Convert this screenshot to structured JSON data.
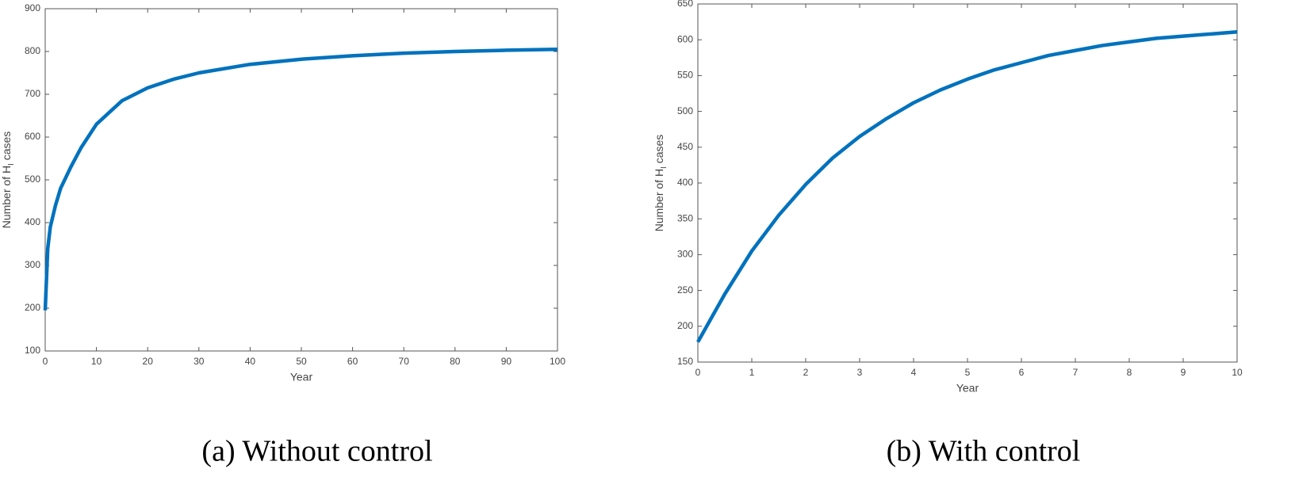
{
  "chart_data": [
    {
      "type": "line",
      "xlabel": "Year",
      "ylabel": [
        "Number of H",
        "I",
        " cases"
      ],
      "caption": "(a)  Without control",
      "x": [
        0,
        0.5,
        1,
        2,
        3,
        5,
        7,
        10,
        15,
        20,
        25,
        30,
        40,
        50,
        60,
        70,
        80,
        90,
        100
      ],
      "series": [
        {
          "color": "#0072bd",
          "values": [
            195,
            340,
            390,
            440,
            480,
            530,
            575,
            630,
            685,
            715,
            735,
            750,
            770,
            782,
            790,
            796,
            800,
            803,
            805
          ]
        }
      ],
      "xlim": [
        0,
        100
      ],
      "xticks": [
        0,
        10,
        20,
        30,
        40,
        50,
        60,
        70,
        80,
        90,
        100
      ],
      "ylim": [
        100,
        900
      ],
      "yticks": [
        100,
        200,
        300,
        400,
        500,
        600,
        700,
        800,
        900
      ]
    },
    {
      "type": "line",
      "xlabel": "Year",
      "ylabel": [
        "Number of H",
        "I",
        " cases"
      ],
      "caption": "(b) With control",
      "x": [
        0,
        0.5,
        1,
        1.5,
        2,
        2.5,
        3,
        3.5,
        4,
        4.5,
        5,
        5.5,
        6,
        6.5,
        7,
        7.5,
        8,
        8.5,
        9,
        9.5,
        10
      ],
      "series": [
        {
          "color": "#0072bd",
          "values": [
            178,
            245,
            305,
            355,
            398,
            435,
            465,
            490,
            512,
            530,
            545,
            558,
            568,
            578,
            585,
            592,
            597,
            602,
            605,
            608,
            611
          ]
        }
      ],
      "xlim": [
        0,
        10
      ],
      "xticks": [
        0,
        1,
        2,
        3,
        4,
        5,
        6,
        7,
        8,
        9,
        10
      ],
      "ylim": [
        150,
        650
      ],
      "yticks": [
        150,
        200,
        250,
        300,
        350,
        400,
        450,
        500,
        550,
        600,
        650
      ]
    }
  ]
}
